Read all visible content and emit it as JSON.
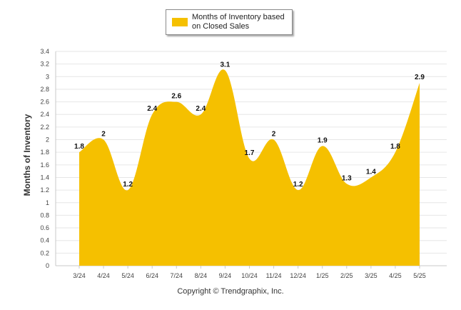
{
  "chart_data": {
    "type": "area",
    "categories": [
      "3/24",
      "4/24",
      "5/24",
      "6/24",
      "7/24",
      "8/24",
      "9/24",
      "10/24",
      "11/24",
      "12/24",
      "1/25",
      "2/25",
      "3/25",
      "4/25",
      "5/25"
    ],
    "series": [
      {
        "name": "Months of Inventory based on Closed Sales",
        "values": [
          1.8,
          2,
          1.2,
          2.4,
          2.6,
          2.4,
          3.1,
          1.7,
          2,
          1.2,
          1.9,
          1.3,
          1.4,
          1.8,
          2.9
        ],
        "data_labels": [
          "1.8",
          "2",
          "1.2",
          "2.4",
          "2.6",
          "2.4",
          "3.1",
          "1.7",
          "2",
          "1.2",
          "1.9",
          "1.3",
          "1.4",
          "1.8",
          "2.9"
        ],
        "color": "#f5c000"
      }
    ],
    "ylabel": "Months of Inventory",
    "ylim": [
      0,
      3.4
    ],
    "yticks": [
      "0",
      "0.2",
      "0.4",
      "0.6",
      "0.8",
      "1",
      "1.2",
      "1.4",
      "1.6",
      "1.8",
      "2",
      "2.2",
      "2.4",
      "2.6",
      "2.8",
      "3",
      "3.2",
      "3.4"
    ],
    "grid": true,
    "legend_position": "top-center"
  },
  "legend": {
    "label": "Months of Inventory based on Closed Sales",
    "color": "#f5c000"
  },
  "footer": "Copyright © Trendgraphix, Inc."
}
